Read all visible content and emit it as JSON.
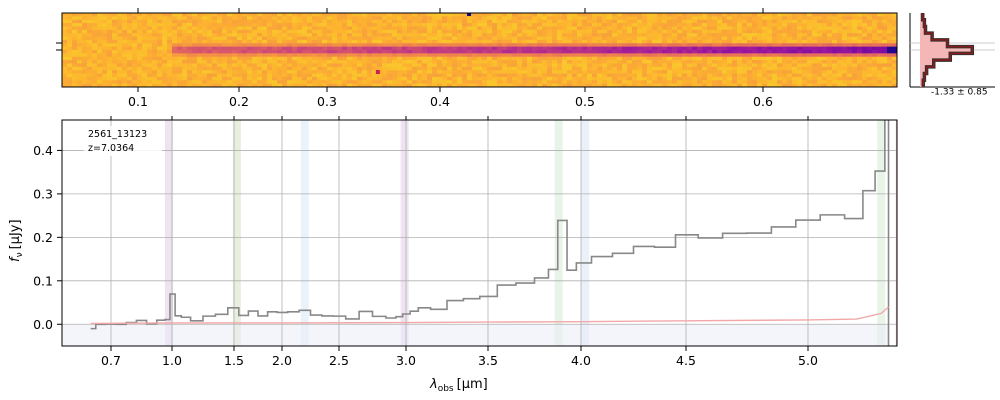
{
  "chart_data": [
    {
      "type": "heatmap",
      "panel": "2d-spectrum",
      "description_colormap": "plasma",
      "colors": [
        "#0d0887",
        "#5c01a6",
        "#9c179e",
        "#cc4778",
        "#ed7953",
        "#fdb42f",
        "#f0f921"
      ],
      "xticks": [
        0.1,
        0.2,
        0.3,
        0.4,
        0.5,
        0.6
      ],
      "xtick_labels": [
        "0.1",
        "0.2",
        "0.3",
        "0.4",
        "0.5",
        "0.6"
      ],
      "trace_start": 0.13,
      "trace_end": 0.675,
      "trace_peak": 0.673,
      "hot_pixels": [
        0.42,
        0.345
      ]
    },
    {
      "type": "line",
      "panel": "spatial-profile",
      "annotation": "-1.33 ± 0.85",
      "profile": [
        0.05,
        0.08,
        0.1,
        0.22,
        0.5,
        0.95,
        0.55,
        0.25,
        0.12,
        0.08,
        0.06
      ],
      "colors": {
        "profile": "#333333",
        "model": "#8b1a1a",
        "fill": "#f4b6b6"
      }
    },
    {
      "type": "line",
      "panel": "1d-spectrum",
      "annotations": [
        "2561_13123",
        "z=7.0364"
      ],
      "xlabel_main": "λ",
      "xlabel_sub": "obs",
      "xlabel_unit": "[μm]",
      "ylabel_main": "f",
      "ylabel_sub": "ν",
      "ylabel_unit": "[μJy]",
      "ylim": [
        -0.05,
        0.47
      ],
      "yticks": [
        0.0,
        0.1,
        0.2,
        0.3,
        0.4
      ],
      "ytick_labels": [
        "0.0",
        "0.1",
        "0.2",
        "0.3",
        "0.4"
      ],
      "xticks": [
        0.7,
        1.0,
        1.5,
        2.0,
        2.5,
        3.0,
        3.5,
        4.0,
        4.5,
        5.0
      ],
      "xtick_labels": [
        "0.7",
        "1.0",
        "1.5",
        "2.0",
        "2.5",
        "3.0",
        "3.5",
        "4.0",
        "4.5",
        "5.0"
      ],
      "grid": true,
      "emission_lines": [
        {
          "x": 0.985,
          "color": "#9c4fb0"
        },
        {
          "x": 1.53,
          "color": "#6f9a3a"
        },
        {
          "x": 2.2,
          "color": "#7fb6e0"
        },
        {
          "x": 2.99,
          "color": "#9c4fb0"
        },
        {
          "x": 3.88,
          "color": "#6fba6f"
        },
        {
          "x": 4.02,
          "color": "#7fa8dd"
        },
        {
          "x": 5.3,
          "color": "#6fba6f"
        }
      ],
      "series": [
        {
          "color": "#888888",
          "x": [
            0.6,
            0.65,
            0.7,
            0.75,
            0.8,
            0.85,
            0.9,
            0.95,
            0.98,
            1.0,
            1.05,
            1.1,
            1.2,
            1.3,
            1.4,
            1.5,
            1.6,
            1.7,
            1.8,
            1.9,
            2.0,
            2.1,
            2.2,
            2.3,
            2.4,
            2.5,
            2.6,
            2.7,
            2.8,
            2.9,
            2.95,
            3.0,
            3.05,
            3.1,
            3.2,
            3.3,
            3.4,
            3.5,
            3.6,
            3.7,
            3.8,
            3.85,
            3.9,
            3.95,
            4.0,
            4.1,
            4.2,
            4.3,
            4.4,
            4.5,
            4.6,
            4.7,
            4.8,
            4.9,
            5.0,
            5.1,
            5.2,
            5.25,
            5.3,
            5.33
          ],
          "y": [
            -0.01,
            -0.005,
            0.0,
            -0.005,
            0.0,
            0.005,
            0.0,
            0.005,
            0.01,
            0.065,
            0.02,
            0.015,
            0.015,
            0.02,
            0.025,
            0.03,
            0.025,
            0.03,
            0.025,
            0.03,
            0.025,
            0.035,
            0.03,
            0.025,
            0.02,
            0.02,
            0.02,
            0.025,
            0.02,
            0.015,
            0.015,
            0.03,
            0.035,
            0.035,
            0.04,
            0.05,
            0.06,
            0.07,
            0.085,
            0.095,
            0.105,
            0.12,
            0.24,
            0.13,
            0.14,
            0.15,
            0.165,
            0.18,
            0.18,
            0.2,
            0.205,
            0.21,
            0.215,
            0.23,
            0.235,
            0.245,
            0.25,
            0.3,
            0.35,
            0.47
          ]
        },
        {
          "color": "#f2a8a8",
          "x": [
            0.6,
            1.0,
            2.0,
            3.0,
            3.5,
            4.0,
            4.5,
            5.0,
            5.2,
            5.3,
            5.33
          ],
          "y": [
            0.002,
            0.003,
            0.003,
            0.004,
            0.005,
            0.006,
            0.008,
            0.01,
            0.012,
            0.025,
            0.04
          ]
        }
      ]
    }
  ]
}
